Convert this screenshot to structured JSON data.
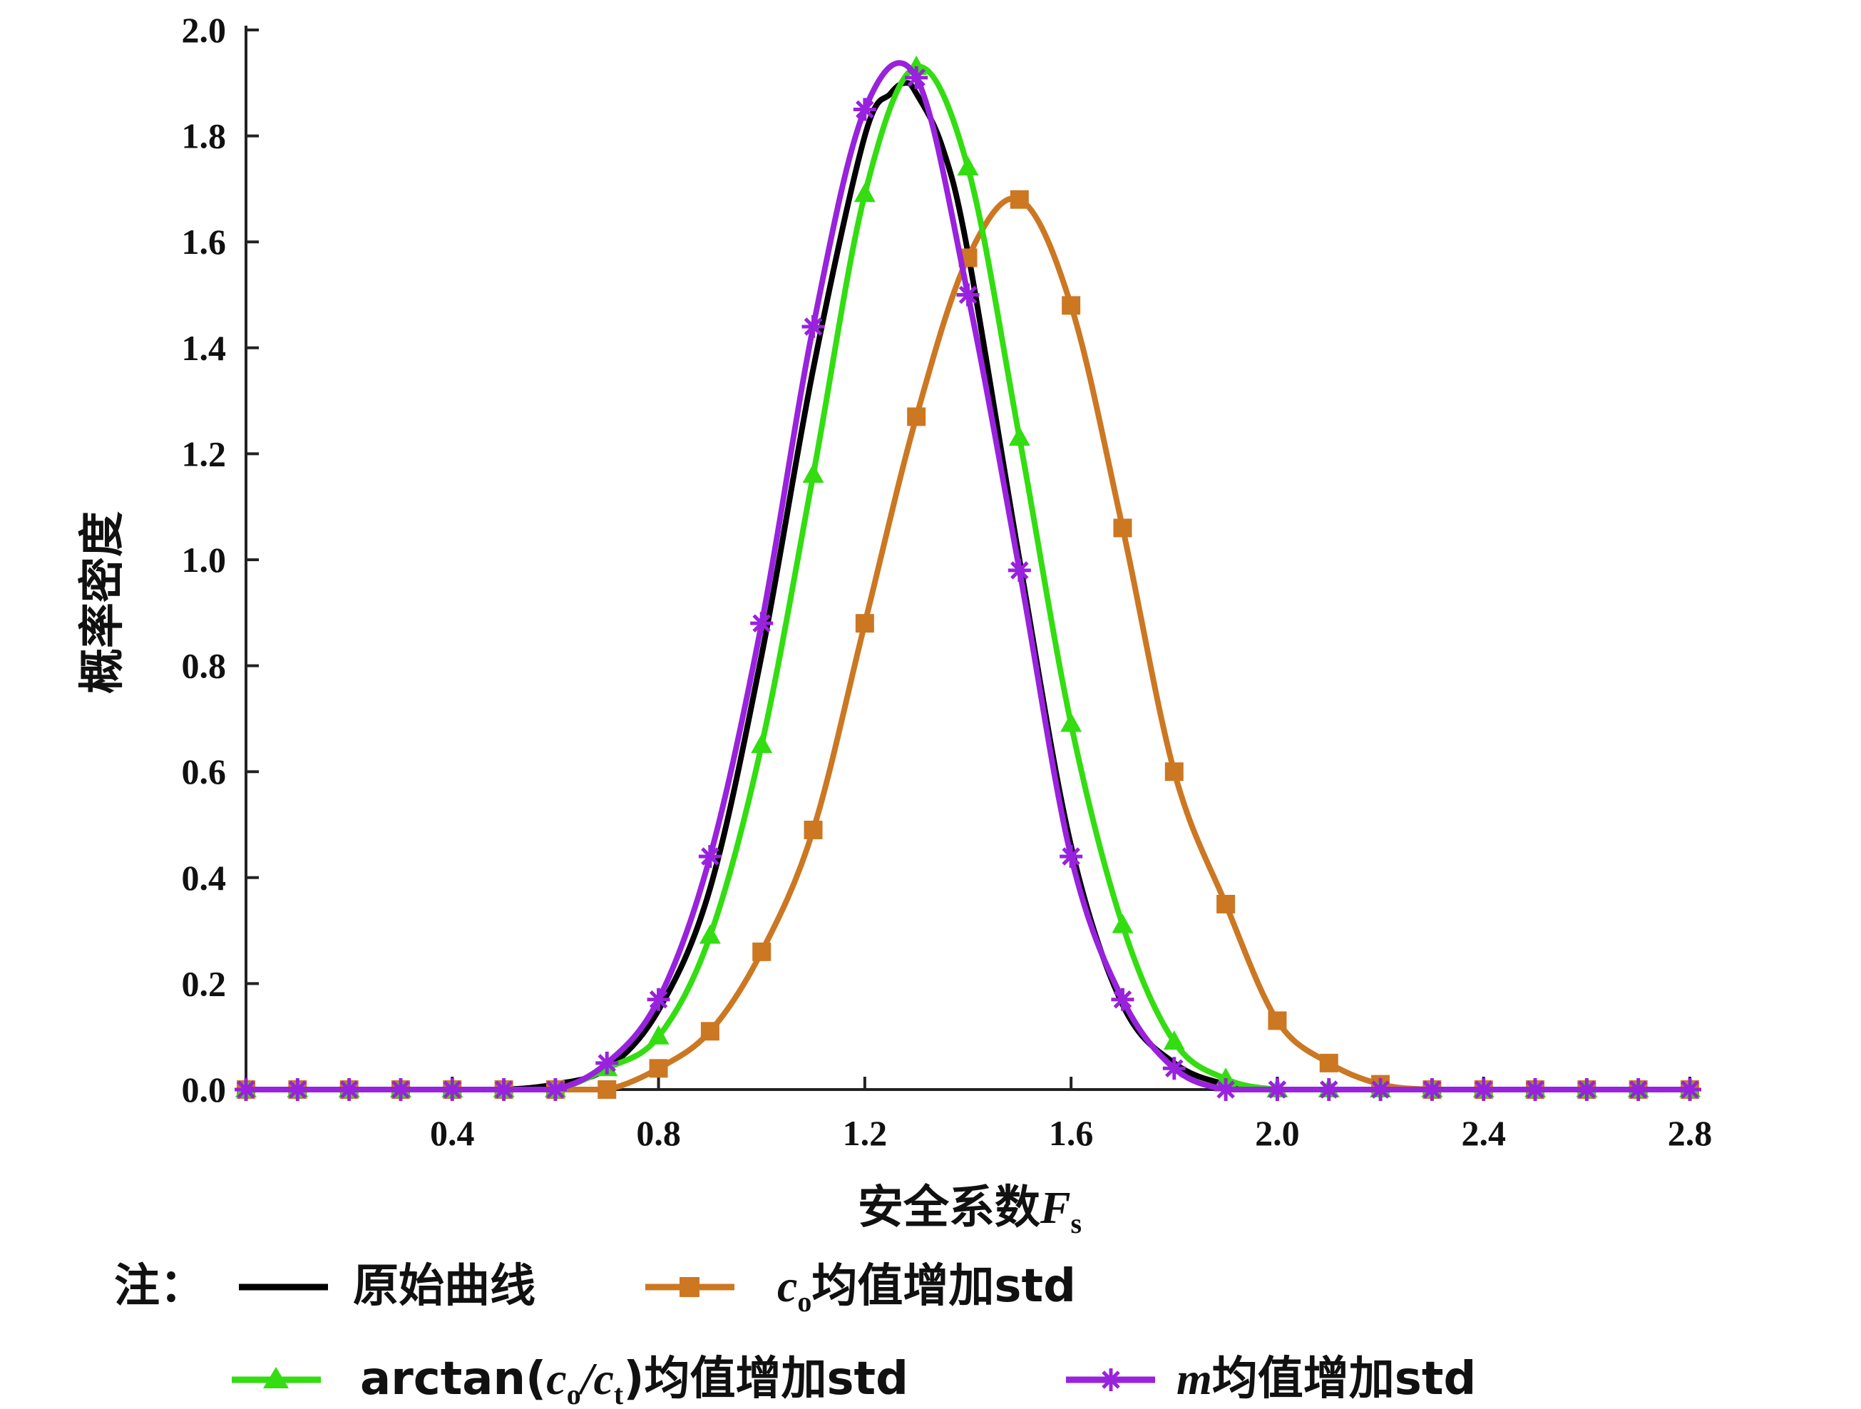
{
  "chart_data": {
    "type": "line",
    "xlabel": "安全系数",
    "xlabel_var": "F",
    "xlabel_sub": "s",
    "ylabel": "概率密度",
    "xlim": [
      0.0,
      2.8
    ],
    "ylim": [
      0.0,
      2.0
    ],
    "x_ticks": [
      0.4,
      0.8,
      1.2,
      1.6,
      2.0,
      2.4,
      2.8
    ],
    "x_tick_labels": [
      "0.4",
      "0.8",
      "1.2",
      "1.6",
      "2.0",
      "2.4",
      "2.8"
    ],
    "y_ticks": [
      0.0,
      0.2,
      0.4,
      0.6,
      0.8,
      1.0,
      1.2,
      1.4,
      1.6,
      1.8,
      2.0
    ],
    "y_tick_labels": [
      "0.0",
      "0.2",
      "0.4",
      "0.6",
      "0.8",
      "1.0",
      "1.2",
      "1.4",
      "1.6",
      "1.8",
      "2.0"
    ],
    "grid": false,
    "legend_position": "bottom",
    "legend_prefix": "注：",
    "series": [
      {
        "name": "原始曲线",
        "color": "#000000",
        "marker": "none",
        "x": [
          0.0,
          0.1,
          0.2,
          0.3,
          0.4,
          0.5,
          0.6,
          0.7,
          0.8,
          0.9,
          1.0,
          1.1,
          1.2,
          1.25,
          1.28,
          1.3,
          1.35,
          1.4,
          1.5,
          1.6,
          1.7,
          1.8,
          1.9,
          2.0,
          2.1,
          2.2,
          2.4,
          2.6,
          2.8
        ],
        "y": [
          0.0,
          0.0,
          0.0,
          0.0,
          0.0,
          0.0,
          0.01,
          0.04,
          0.15,
          0.38,
          0.82,
          1.36,
          1.8,
          1.88,
          1.9,
          1.88,
          1.78,
          1.58,
          1.0,
          0.46,
          0.16,
          0.05,
          0.01,
          0.0,
          0.0,
          0.0,
          0.0,
          0.0,
          0.0
        ]
      },
      {
        "name": "c₀均值增加std",
        "label_var": "c",
        "label_sub": "o",
        "label_text": "均值增加std",
        "color": "#CC7722",
        "marker": "square",
        "x": [
          0.0,
          0.1,
          0.2,
          0.3,
          0.4,
          0.5,
          0.6,
          0.7,
          0.8,
          0.9,
          1.0,
          1.1,
          1.2,
          1.3,
          1.4,
          1.5,
          1.6,
          1.7,
          1.8,
          1.9,
          2.0,
          2.1,
          2.2,
          2.3,
          2.4,
          2.5,
          2.6,
          2.7,
          2.8
        ],
        "y": [
          0.0,
          0.0,
          0.0,
          0.0,
          0.0,
          0.0,
          0.0,
          0.0,
          0.04,
          0.11,
          0.26,
          0.49,
          0.88,
          1.27,
          1.57,
          1.68,
          1.48,
          1.06,
          0.6,
          0.35,
          0.13,
          0.05,
          0.01,
          0.0,
          0.0,
          0.0,
          0.0,
          0.0,
          0.0
        ]
      },
      {
        "name": "arctan(c₀/cₜ)均值增加std",
        "label_prefix": "arctan(",
        "label_var1": "c",
        "label_sub1": "o",
        "label_slash": "/",
        "label_var2": "c",
        "label_sub2": "t",
        "label_suffix": ")均值增加std",
        "color": "#33DD11",
        "marker": "triangle",
        "x": [
          0.0,
          0.1,
          0.2,
          0.3,
          0.4,
          0.5,
          0.6,
          0.7,
          0.8,
          0.9,
          1.0,
          1.1,
          1.2,
          1.3,
          1.4,
          1.5,
          1.6,
          1.7,
          1.8,
          1.9,
          2.0,
          2.1,
          2.2,
          2.3,
          2.4,
          2.5,
          2.6,
          2.7,
          2.8
        ],
        "y": [
          0.0,
          0.0,
          0.0,
          0.0,
          0.0,
          0.0,
          0.0,
          0.04,
          0.1,
          0.29,
          0.65,
          1.16,
          1.69,
          1.93,
          1.74,
          1.23,
          0.69,
          0.31,
          0.09,
          0.02,
          0.0,
          0.0,
          0.0,
          0.0,
          0.0,
          0.0,
          0.0,
          0.0,
          0.0
        ]
      },
      {
        "name": "m均值增加std",
        "label_var": "m",
        "label_text": "均值增加std",
        "color": "#9922DD",
        "marker": "asterisk",
        "x": [
          0.0,
          0.1,
          0.2,
          0.3,
          0.4,
          0.5,
          0.6,
          0.7,
          0.8,
          0.9,
          1.0,
          1.1,
          1.2,
          1.3,
          1.4,
          1.5,
          1.6,
          1.7,
          1.8,
          1.9,
          2.0,
          2.1,
          2.2,
          2.3,
          2.4,
          2.5,
          2.6,
          2.7,
          2.8
        ],
        "y": [
          0.0,
          0.0,
          0.0,
          0.0,
          0.0,
          0.0,
          0.0,
          0.05,
          0.17,
          0.44,
          0.88,
          1.44,
          1.85,
          1.91,
          1.5,
          0.98,
          0.44,
          0.17,
          0.04,
          0.0,
          0.0,
          0.0,
          0.0,
          0.0,
          0.0,
          0.0,
          0.0,
          0.0,
          0.0
        ]
      }
    ]
  }
}
